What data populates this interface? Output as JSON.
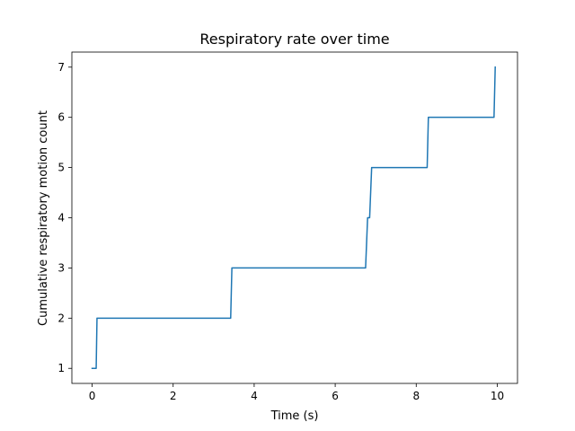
{
  "chart_data": {
    "type": "line",
    "title": "Respiratory rate over time",
    "xlabel": "Time (s)",
    "ylabel": "Cumulative respiratory motion count",
    "xlim": [
      -0.5,
      10.5
    ],
    "ylim": [
      0.7,
      7.3
    ],
    "xticks": [
      0,
      2,
      4,
      6,
      8,
      10
    ],
    "yticks": [
      1,
      2,
      3,
      4,
      5,
      6,
      7
    ],
    "grid": false,
    "series": [
      {
        "color": "#1f77b4",
        "x": [
          0.0,
          0.1,
          0.12,
          3.42,
          3.45,
          6.75,
          6.8,
          6.85,
          6.9,
          8.27,
          8.3,
          9.92,
          9.95
        ],
        "y": [
          1,
          1,
          2,
          2,
          3,
          3,
          4,
          4,
          5,
          5,
          6,
          6,
          7
        ]
      }
    ]
  }
}
